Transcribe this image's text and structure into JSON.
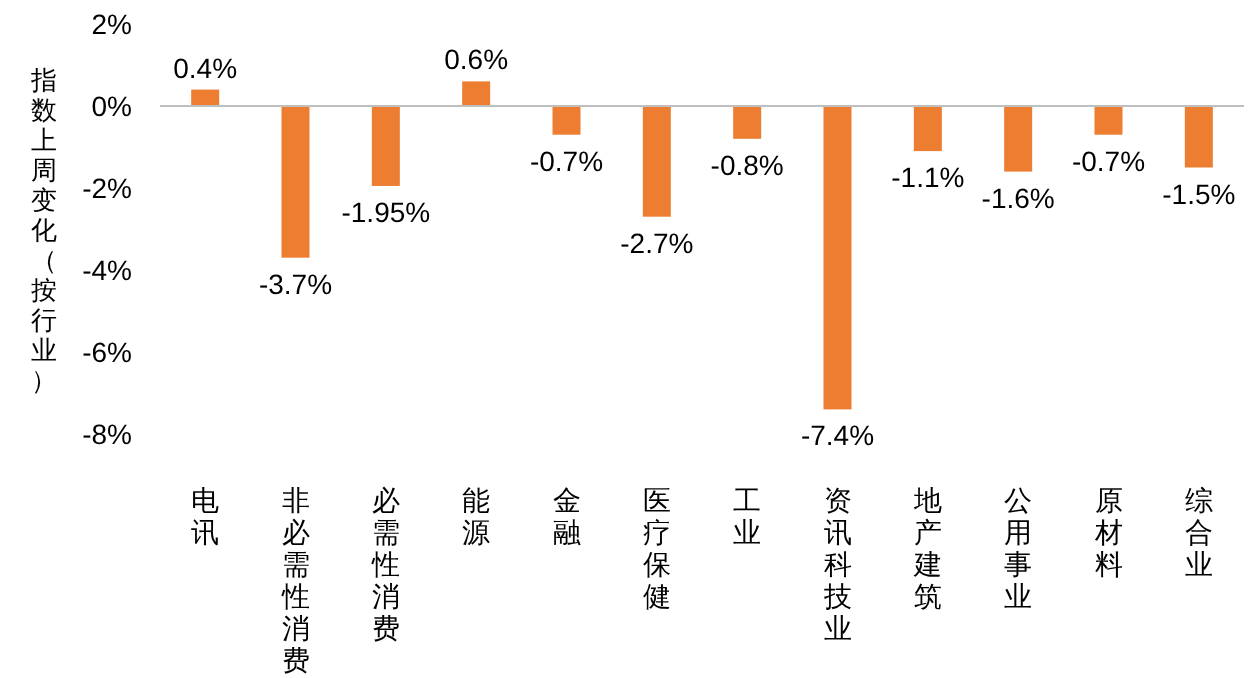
{
  "chart_data": {
    "type": "bar",
    "ylabel": "指数上周变化（按行业）",
    "categories": [
      "电讯",
      "非必需性消费",
      "必需性消费",
      "能源",
      "金融",
      "医疗保健",
      "工业",
      "资讯科技业",
      "地产建筑",
      "公用事业",
      "原材料",
      "综合业"
    ],
    "values": [
      0.4,
      -3.7,
      -1.95,
      0.6,
      -0.7,
      -2.7,
      -0.8,
      -7.4,
      -1.1,
      -1.6,
      -0.7,
      -1.5
    ],
    "value_labels": [
      "0.4%",
      "-3.7%",
      "-1.95%",
      "0.6%",
      "-0.7%",
      "-2.7%",
      "-0.8%",
      "-7.4%",
      "-1.1%",
      "-1.6%",
      "-0.7%",
      "-1.5%"
    ],
    "color": "#ed7d31",
    "ylim": [
      -8,
      2
    ],
    "yticks": [
      {
        "value": -8,
        "label": "-8%"
      },
      {
        "value": -6,
        "label": "-6%"
      },
      {
        "value": -4,
        "label": "-4%"
      },
      {
        "value": -2,
        "label": "-2%"
      },
      {
        "value": 0,
        "label": "0%"
      },
      {
        "value": 2,
        "label": "2%"
      }
    ]
  }
}
